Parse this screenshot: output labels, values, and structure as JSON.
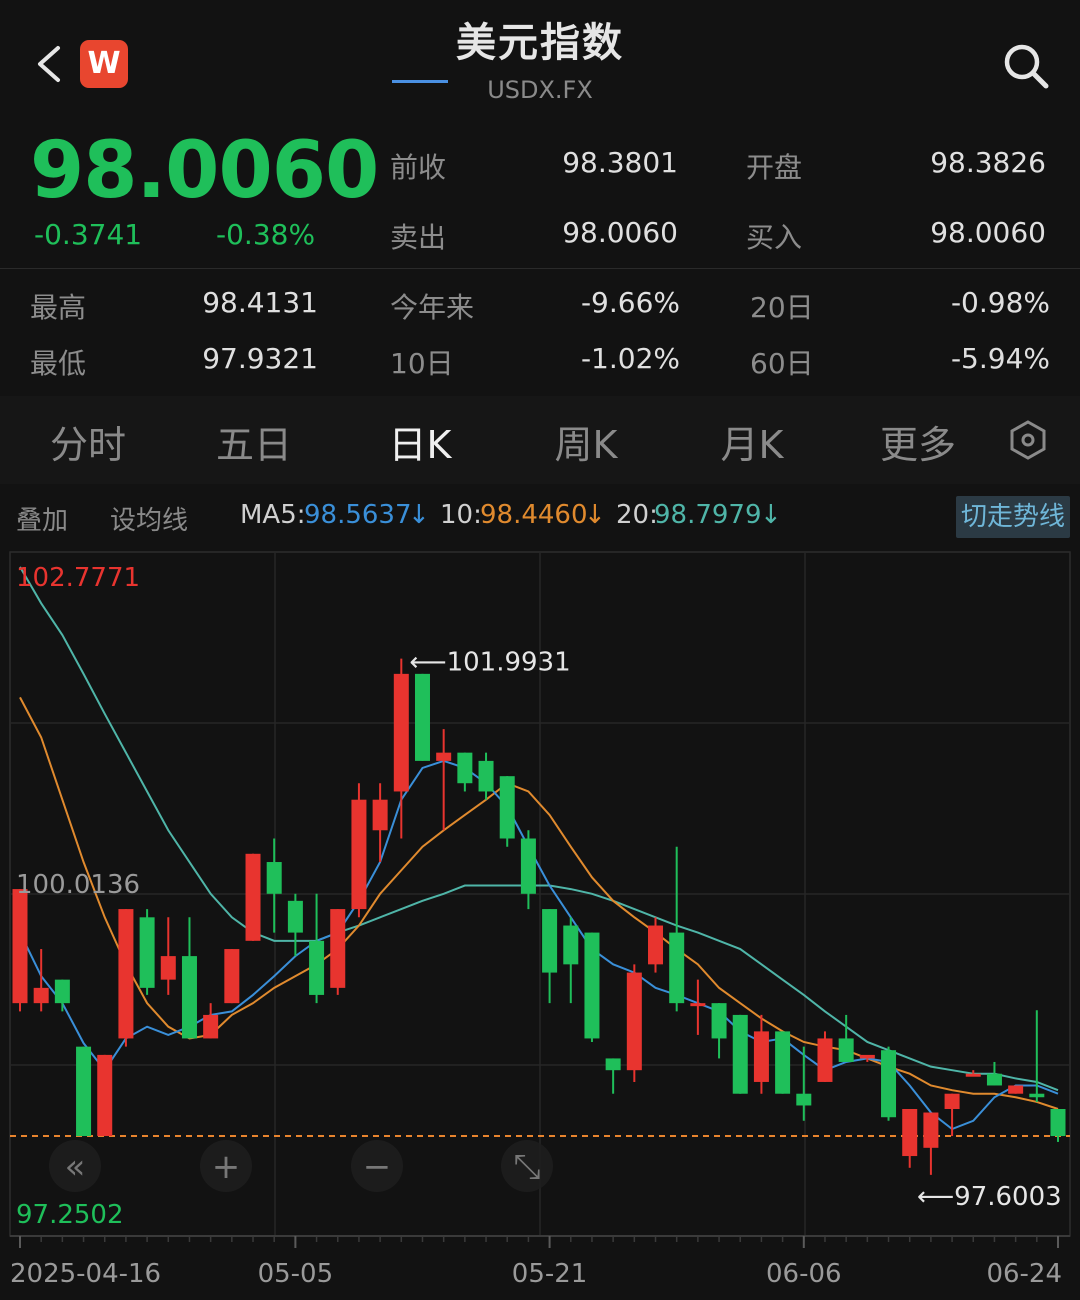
{
  "header": {
    "title": "美元指数",
    "subtitle": "USDX.FX",
    "logo_letter": "W"
  },
  "quote": {
    "price": "98.0060",
    "change": "-0.3741",
    "change_pct": "-0.38%",
    "color_down": "#1fbf5a",
    "color_up": "#e8342f",
    "stats": {
      "prev_close_label": "前收",
      "prev_close": "98.3801",
      "open_label": "开盘",
      "open": "98.3826",
      "ask_label": "卖出",
      "ask": "98.0060",
      "bid_label": "买入",
      "bid": "98.0060",
      "high_label": "最高",
      "high": "98.4131",
      "low_label": "最低",
      "low": "97.9321",
      "ytd_label": "今年来",
      "ytd": "-9.66%",
      "d20_label": "20日",
      "d20": "-0.98%",
      "d10_label": "10日",
      "d10": "-1.02%",
      "d60_label": "60日",
      "d60": "-5.94%"
    }
  },
  "tabs": [
    "分时",
    "五日",
    "日K",
    "周K",
    "月K",
    "更多"
  ],
  "active_tab": "日K",
  "ma_bar": {
    "overlay": "叠加",
    "set_ma": "设均线",
    "ma5_label": "MA5:",
    "ma5": "98.5637",
    "ma10_label": "10:",
    "ma10": "98.4460",
    "ma20_label": "20:",
    "ma20": "98.7979",
    "arrow": "↓",
    "trend_button": "切走势线",
    "ma5_color": "#3a8fd8",
    "ma10_color": "#e08a2e",
    "ma20_color": "#4fb5a8"
  },
  "chart_data": {
    "type": "candlestick",
    "ylim": [
      97.2502,
      102.7771
    ],
    "y_top_label": "102.7771",
    "y_mid_label": "100.0136",
    "y_bottom_label": "97.2502",
    "ref_line": 97.93,
    "max_marker": "101.9931",
    "min_marker": "97.6003",
    "x_tick_labels": [
      "2025-04-16",
      "05-05",
      "05-21",
      "06-06",
      "06-24"
    ],
    "x_tick_index": [
      0,
      13,
      25,
      37,
      49
    ],
    "candles": [
      {
        "o": 99.06,
        "c": 100.03,
        "h": 100.03,
        "l": 98.99
      },
      {
        "o": 99.06,
        "c": 99.19,
        "h": 99.52,
        "l": 98.99
      },
      {
        "o": 99.26,
        "c": 99.06,
        "h": 99.26,
        "l": 98.99
      },
      {
        "o": 98.69,
        "c": 97.93,
        "h": 98.69,
        "l": 97.93
      },
      {
        "o": 97.93,
        "c": 98.62,
        "h": 98.62,
        "l": 97.93
      },
      {
        "o": 98.76,
        "c": 99.86,
        "h": 99.86,
        "l": 98.69
      },
      {
        "o": 99.79,
        "c": 99.19,
        "h": 99.86,
        "l": 99.13
      },
      {
        "o": 99.26,
        "c": 99.46,
        "h": 99.79,
        "l": 99.13
      },
      {
        "o": 99.46,
        "c": 98.76,
        "h": 99.79,
        "l": 98.76
      },
      {
        "o": 98.76,
        "c": 98.96,
        "h": 99.06,
        "l": 98.76
      },
      {
        "o": 99.06,
        "c": 99.52,
        "h": 99.52,
        "l": 99.06
      },
      {
        "o": 99.59,
        "c": 100.33,
        "h": 100.33,
        "l": 99.59
      },
      {
        "o": 100.26,
        "c": 99.99,
        "h": 100.46,
        "l": 99.66
      },
      {
        "o": 99.93,
        "c": 99.66,
        "h": 99.99,
        "l": 99.46
      },
      {
        "o": 99.59,
        "c": 99.13,
        "h": 99.99,
        "l": 99.06
      },
      {
        "o": 99.19,
        "c": 99.86,
        "h": 99.86,
        "l": 99.13
      },
      {
        "o": 99.86,
        "c": 100.79,
        "h": 100.93,
        "l": 99.79
      },
      {
        "o": 100.53,
        "c": 100.79,
        "h": 100.93,
        "l": 100.26
      },
      {
        "o": 100.86,
        "c": 101.86,
        "h": 101.99,
        "l": 100.46
      },
      {
        "o": 101.86,
        "c": 101.12,
        "h": 101.86,
        "l": 101.12
      },
      {
        "o": 101.12,
        "c": 101.19,
        "h": 101.39,
        "l": 100.53
      },
      {
        "o": 101.19,
        "c": 100.93,
        "h": 101.19,
        "l": 100.86
      },
      {
        "o": 101.12,
        "c": 100.86,
        "h": 101.19,
        "l": 100.79
      },
      {
        "o": 100.99,
        "c": 100.46,
        "h": 100.99,
        "l": 100.39
      },
      {
        "o": 100.46,
        "c": 99.99,
        "h": 100.53,
        "l": 99.86
      },
      {
        "o": 99.86,
        "c": 99.32,
        "h": 99.86,
        "l": 99.06
      },
      {
        "o": 99.72,
        "c": 99.39,
        "h": 99.79,
        "l": 99.06
      },
      {
        "o": 99.66,
        "c": 98.76,
        "h": 99.66,
        "l": 98.73
      },
      {
        "o": 98.59,
        "c": 98.49,
        "h": 98.59,
        "l": 98.29
      },
      {
        "o": 98.49,
        "c": 99.32,
        "h": 99.39,
        "l": 98.39
      },
      {
        "o": 99.39,
        "c": 99.72,
        "h": 99.79,
        "l": 99.32
      },
      {
        "o": 99.66,
        "c": 99.06,
        "h": 100.39,
        "l": 98.99
      },
      {
        "o": 99.06,
        "c": 99.06,
        "h": 99.26,
        "l": 98.79
      },
      {
        "o": 99.06,
        "c": 98.76,
        "h": 99.06,
        "l": 98.59
      },
      {
        "o": 98.96,
        "c": 98.29,
        "h": 98.96,
        "l": 98.29
      },
      {
        "o": 98.39,
        "c": 98.82,
        "h": 98.96,
        "l": 98.29
      },
      {
        "o": 98.82,
        "c": 98.29,
        "h": 98.82,
        "l": 98.29
      },
      {
        "o": 98.29,
        "c": 98.19,
        "h": 98.69,
        "l": 98.06
      },
      {
        "o": 98.39,
        "c": 98.76,
        "h": 98.82,
        "l": 98.39
      },
      {
        "o": 98.76,
        "c": 98.56,
        "h": 98.96,
        "l": 98.56
      },
      {
        "o": 98.59,
        "c": 98.62,
        "h": 98.59,
        "l": 98.56
      },
      {
        "o": 98.66,
        "c": 98.09,
        "h": 98.69,
        "l": 98.06
      },
      {
        "o": 97.76,
        "c": 98.16,
        "h": 98.16,
        "l": 97.66
      },
      {
        "o": 97.83,
        "c": 98.13,
        "h": 98.09,
        "l": 97.6
      },
      {
        "o": 98.16,
        "c": 98.29,
        "h": 98.29,
        "l": 97.93
      },
      {
        "o": 98.46,
        "c": 98.46,
        "h": 98.49,
        "l": 98.46
      },
      {
        "o": 98.46,
        "c": 98.36,
        "h": 98.56,
        "l": 98.36
      },
      {
        "o": 98.29,
        "c": 98.36,
        "h": 98.36,
        "l": 98.29
      },
      {
        "o": 98.29,
        "c": 98.26,
        "h": 99.0,
        "l": 98.22
      },
      {
        "o": 98.16,
        "c": 97.93,
        "h": 98.16,
        "l": 97.88
      }
    ],
    "ma5": [
      99.66,
      99.29,
      99.06,
      98.72,
      98.49,
      98.76,
      98.86,
      98.79,
      98.86,
      98.96,
      98.99,
      99.13,
      99.29,
      99.46,
      99.59,
      99.66,
      99.93,
      100.26,
      100.79,
      101.06,
      101.12,
      101.06,
      100.93,
      100.73,
      100.39,
      100.06,
      99.79,
      99.52,
      99.39,
      99.32,
      99.19,
      99.13,
      99.06,
      98.99,
      98.82,
      98.73,
      98.76,
      98.62,
      98.49,
      98.56,
      98.59,
      98.56,
      98.36,
      98.13,
      97.99,
      98.06,
      98.26,
      98.36,
      98.36,
      98.29
    ],
    "ma10": [
      101.66,
      101.32,
      100.79,
      100.26,
      99.79,
      99.39,
      99.06,
      98.86,
      98.76,
      98.79,
      98.96,
      99.06,
      99.19,
      99.29,
      99.39,
      99.52,
      99.72,
      99.99,
      100.19,
      100.39,
      100.53,
      100.66,
      100.79,
      100.93,
      100.86,
      100.66,
      100.39,
      100.13,
      99.93,
      99.79,
      99.66,
      99.52,
      99.39,
      99.19,
      99.06,
      98.93,
      98.82,
      98.73,
      98.69,
      98.66,
      98.59,
      98.52,
      98.46,
      98.36,
      98.32,
      98.29,
      98.29,
      98.26,
      98.22,
      98.16
    ],
    "ma20": [
      102.77,
      102.46,
      102.19,
      101.86,
      101.52,
      101.19,
      100.86,
      100.53,
      100.26,
      99.99,
      99.79,
      99.66,
      99.59,
      99.59,
      99.59,
      99.66,
      99.72,
      99.79,
      99.86,
      99.93,
      99.99,
      100.06,
      100.06,
      100.06,
      100.06,
      100.06,
      100.03,
      99.99,
      99.93,
      99.86,
      99.79,
      99.72,
      99.66,
      99.59,
      99.52,
      99.39,
      99.26,
      99.13,
      98.99,
      98.86,
      98.73,
      98.66,
      98.59,
      98.52,
      98.49,
      98.46,
      98.46,
      98.42,
      98.39,
      98.32
    ]
  }
}
